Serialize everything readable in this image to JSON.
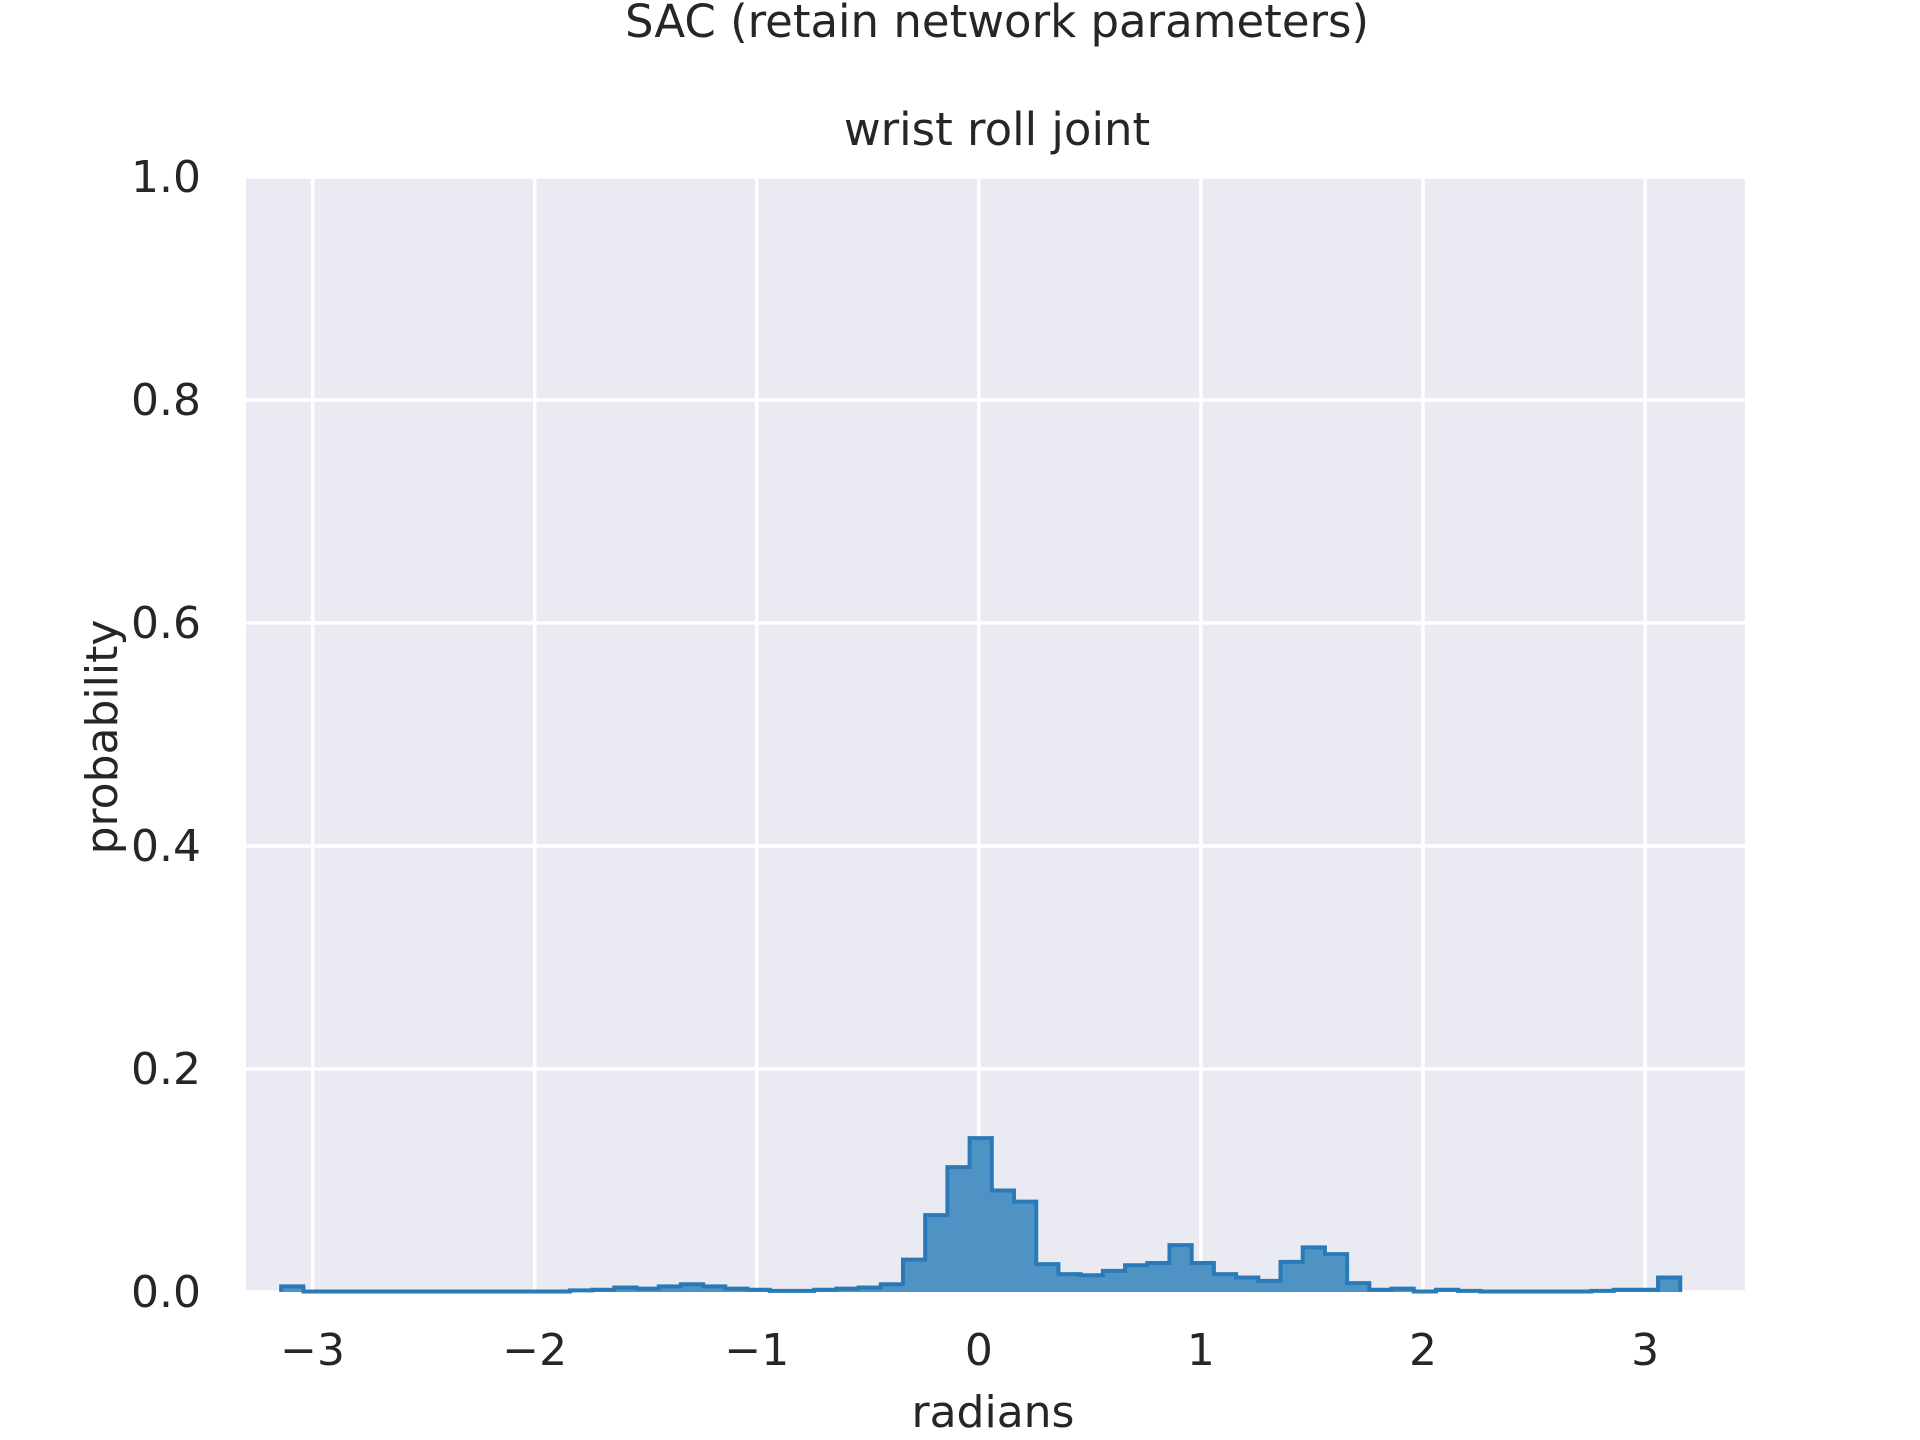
{
  "chart_data": {
    "type": "histogram",
    "title": "SAC (retain network parameters)",
    "subtitle": "wrist roll joint",
    "xlabel": "radians",
    "ylabel": "probability",
    "xlim": [
      -3.3,
      3.45
    ],
    "ylim": [
      0,
      1.0
    ],
    "xticks": [
      -3,
      -2,
      -1,
      0,
      1,
      2,
      3
    ],
    "xtick_labels": [
      "−3",
      "−2",
      "−1",
      "0",
      "1",
      "2",
      "3"
    ],
    "yticks": [
      0.0,
      0.2,
      0.4,
      0.6,
      0.8,
      1.0
    ],
    "ytick_labels": [
      "0.0",
      "0.2",
      "0.4",
      "0.6",
      "0.8",
      "1.0"
    ],
    "grid": true,
    "legend": "none",
    "colors": {
      "fill": "#4f93c4",
      "edge": "#2a7ab8",
      "background": "#eaeaf2",
      "grid": "#ffffff"
    },
    "bin_edges": [
      -3.1416,
      -3.0416,
      -2.9416,
      -2.8416,
      -2.7416,
      -2.6416,
      -2.5416,
      -2.4416,
      -2.3416,
      -2.2416,
      -2.1416,
      -2.0416,
      -1.9416,
      -1.8416,
      -1.7416,
      -1.6416,
      -1.5416,
      -1.4416,
      -1.3416,
      -1.2416,
      -1.1416,
      -1.0416,
      -0.9416,
      -0.8416,
      -0.7416,
      -0.6416,
      -0.5416,
      -0.4416,
      -0.3416,
      -0.2416,
      -0.1416,
      -0.0416,
      0.0584,
      0.1584,
      0.2584,
      0.3584,
      0.4584,
      0.5584,
      0.6584,
      0.7584,
      0.8584,
      0.9584,
      1.0584,
      1.1584,
      1.2584,
      1.3584,
      1.4584,
      1.5584,
      1.6584,
      1.7584,
      1.8584,
      1.9584,
      2.0584,
      2.1584,
      2.2584,
      2.3584,
      2.4584,
      2.5584,
      2.6584,
      2.7584,
      2.8584,
      2.9584,
      3.0584,
      3.1584
    ],
    "values": [
      0.005,
      0.0005,
      0.0005,
      0.0005,
      0.0005,
      0.0005,
      0.0005,
      0.0005,
      0.0005,
      0.0005,
      0.0005,
      0.0005,
      0.0005,
      0.0015,
      0.002,
      0.004,
      0.003,
      0.005,
      0.007,
      0.005,
      0.003,
      0.002,
      0.001,
      0.001,
      0.002,
      0.003,
      0.004,
      0.007,
      0.029,
      0.069,
      0.112,
      0.138,
      0.091,
      0.081,
      0.025,
      0.016,
      0.015,
      0.019,
      0.024,
      0.026,
      0.042,
      0.026,
      0.016,
      0.013,
      0.01,
      0.027,
      0.04,
      0.034,
      0.008,
      0.002,
      0.003,
      0.0005,
      0.002,
      0.001,
      0.0005,
      0.0005,
      0.0005,
      0.0005,
      0.0005,
      0.001,
      0.002,
      0.002,
      0.013
    ]
  }
}
